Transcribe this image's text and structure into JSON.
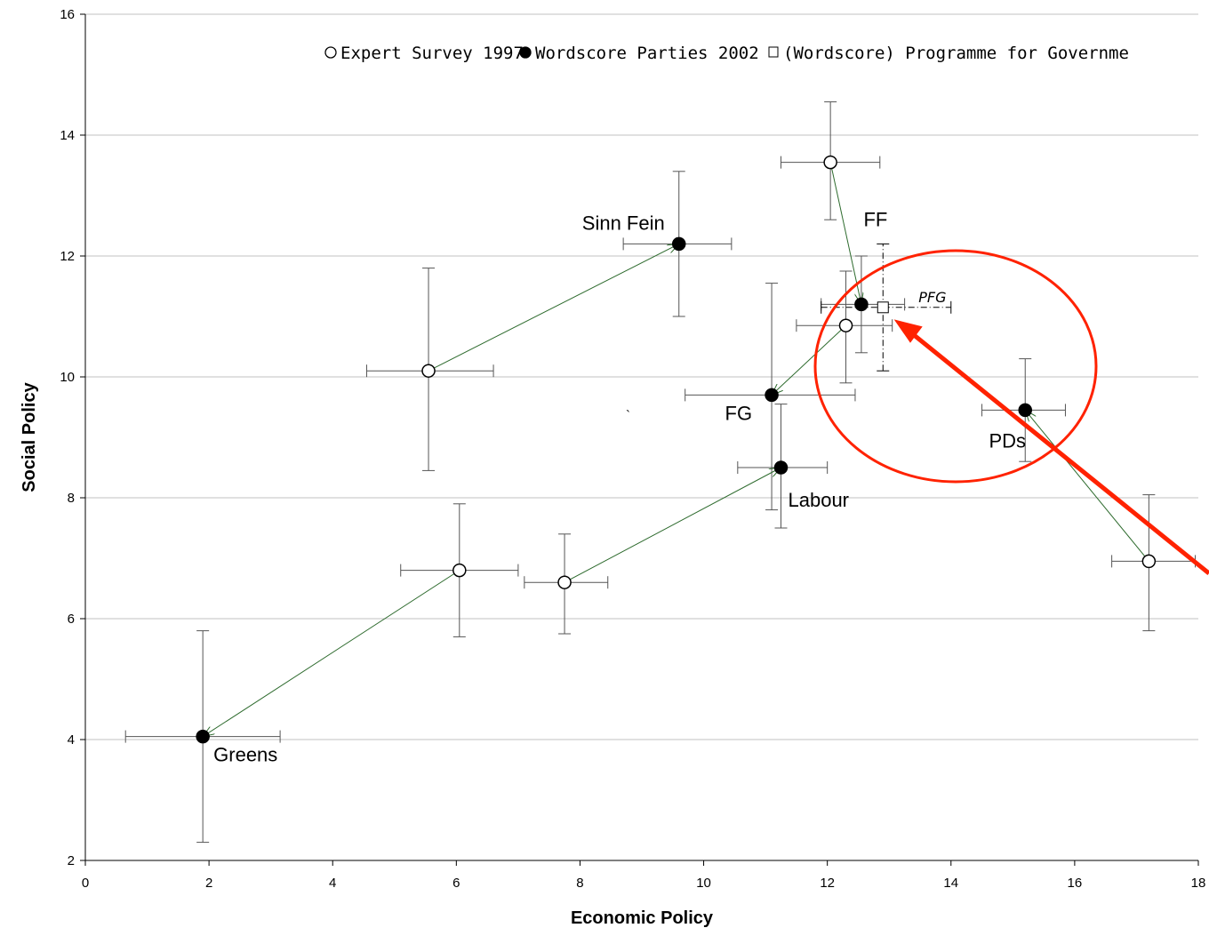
{
  "chart_data": {
    "type": "scatter",
    "title": "",
    "xlabel": "Economic Policy",
    "ylabel": "Social Policy",
    "xlim": [
      0,
      18
    ],
    "ylim": [
      2,
      16
    ],
    "xticks": [
      0,
      2,
      4,
      6,
      8,
      10,
      12,
      14,
      16,
      18
    ],
    "yticks": [
      2,
      4,
      6,
      8,
      10,
      12,
      14,
      16
    ],
    "grid": "horizontal",
    "legend_position": "top",
    "colors": {
      "filled": "#000000",
      "open": "#ffffff",
      "arrow": "#2e6b2e",
      "annotation": "#ff2200"
    },
    "series": [
      {
        "name": "Expert Survey 1997",
        "marker": "open-circle",
        "points": [
          {
            "x": 5.55,
            "y": 10.1,
            "xerr": [
              4.55,
              6.6
            ],
            "yerr": [
              8.45,
              11.8
            ]
          },
          {
            "x": 6.05,
            "y": 6.8,
            "xerr": [
              5.1,
              7.0
            ],
            "yerr": [
              5.7,
              7.9
            ]
          },
          {
            "x": 7.75,
            "y": 6.6,
            "xerr": [
              7.1,
              8.45
            ],
            "yerr": [
              5.75,
              7.4
            ]
          },
          {
            "x": 12.05,
            "y": 13.55,
            "xerr": [
              11.25,
              12.85
            ],
            "yerr": [
              12.6,
              14.55
            ]
          },
          {
            "x": 12.3,
            "y": 10.85,
            "xerr": [
              11.5,
              13.05
            ],
            "yerr": [
              9.9,
              11.75
            ]
          },
          {
            "x": 17.2,
            "y": 6.95,
            "xerr": [
              16.6,
              17.95
            ],
            "yerr": [
              5.8,
              8.05
            ]
          }
        ]
      },
      {
        "name": "Wordscore Parties 2002",
        "marker": "filled-circle",
        "points": [
          {
            "x": 1.9,
            "y": 4.05,
            "xerr": [
              0.65,
              3.15
            ],
            "yerr": [
              2.3,
              5.8
            ],
            "label": "Greens"
          },
          {
            "x": 9.6,
            "y": 12.2,
            "xerr": [
              8.7,
              10.45
            ],
            "yerr": [
              11.0,
              13.4
            ],
            "label": "Sinn Fein"
          },
          {
            "x": 11.1,
            "y": 9.7,
            "xerr": [
              9.7,
              12.45
            ],
            "yerr": [
              7.8,
              11.55
            ],
            "label": "FG"
          },
          {
            "x": 11.25,
            "y": 8.5,
            "xerr": [
              10.55,
              12.0
            ],
            "yerr": [
              7.5,
              9.55
            ],
            "label": "Labour"
          },
          {
            "x": 12.55,
            "y": 11.2,
            "xerr": [
              11.9,
              13.25
            ],
            "yerr": [
              10.4,
              12.0
            ],
            "label": "FF"
          },
          {
            "x": 15.2,
            "y": 9.45,
            "xerr": [
              14.5,
              15.85
            ],
            "yerr": [
              8.6,
              10.3
            ],
            "label": "PDs"
          }
        ]
      },
      {
        "name": "(Wordscore) Programme for Government",
        "marker": "open-square",
        "points": [
          {
            "x": 12.9,
            "y": 11.15,
            "xerr": [
              11.9,
              14.0
            ],
            "yerr": [
              10.1,
              12.2
            ],
            "label": "PFG"
          }
        ]
      }
    ],
    "arrows": [
      {
        "from": [
          5.55,
          10.1
        ],
        "to": [
          9.6,
          12.2
        ]
      },
      {
        "from": [
          6.05,
          6.8
        ],
        "to": [
          1.9,
          4.05
        ]
      },
      {
        "from": [
          7.75,
          6.6
        ],
        "to": [
          11.25,
          8.5
        ]
      },
      {
        "from": [
          12.05,
          13.55
        ],
        "to": [
          12.55,
          11.2
        ]
      },
      {
        "from": [
          12.3,
          10.85
        ],
        "to": [
          11.1,
          9.7
        ]
      },
      {
        "from": [
          17.2,
          6.95
        ],
        "to": [
          15.2,
          9.45
        ]
      }
    ],
    "legend": [
      "Expert Survey 1997",
      "Wordscore Parties 2002",
      "(Wordscore) Programme for Governme"
    ],
    "stray_mark": "`"
  }
}
